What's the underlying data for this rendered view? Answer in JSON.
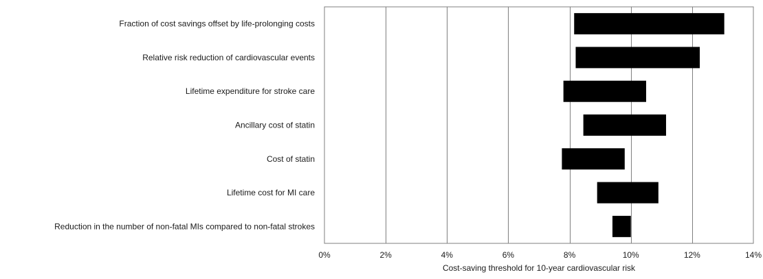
{
  "chart_data": {
    "type": "bar",
    "orientation": "horizontal",
    "subtype": "tornado",
    "categories": [
      "Fraction of cost savings offset by life-prolonging costs",
      "Relative risk reduction of cardiovascular events",
      "Lifetime expenditure for stroke care",
      "Ancillary cost of statin",
      "Cost of statin",
      "Lifetime cost for MI care",
      "Reduction in the number of non-fatal MIs compared to non-fatal strokes"
    ],
    "ranges": [
      [
        8.15,
        13.05
      ],
      [
        8.2,
        12.25
      ],
      [
        7.8,
        10.5
      ],
      [
        8.45,
        11.15
      ],
      [
        7.75,
        9.8
      ],
      [
        8.9,
        10.9
      ],
      [
        9.4,
        10.0
      ]
    ],
    "bar_color": "#000000",
    "xlim": [
      0,
      14
    ],
    "xticks": [
      0,
      2,
      4,
      6,
      8,
      10,
      12,
      14
    ],
    "xtick_labels": [
      "0%",
      "2%",
      "4%",
      "6%",
      "8%",
      "10%",
      "12%",
      "14%"
    ],
    "xlabel": "Cost-saving threshold for 10-year cardiovascular risk",
    "ylabel": "",
    "title": "",
    "grid": "vertical",
    "legend": "none"
  }
}
